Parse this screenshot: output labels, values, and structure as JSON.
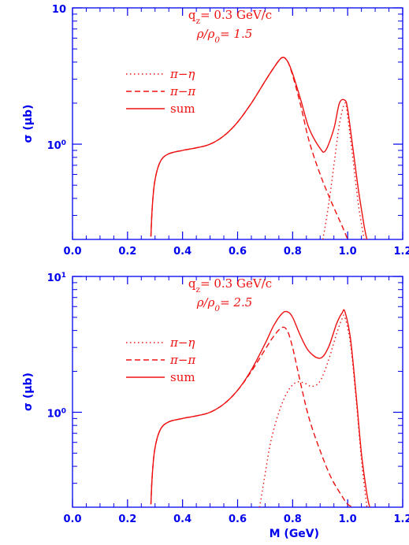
{
  "colors": {
    "axis": "#0000ee",
    "curve": "#ee1111",
    "background": "#ffffff"
  },
  "chart_data": [
    {
      "type": "line",
      "title_lines": [
        "q_z= 0.3 GeV/c",
        "ρ/ρ_0= 1.5"
      ],
      "ylabel": "σ (μb)",
      "xlabel": "",
      "xlim": [
        0.0,
        1.2
      ],
      "ylim": [
        0.2,
        10
      ],
      "yscale": "log",
      "xticks": [
        "0.0",
        "0.2",
        "0.4",
        "0.6",
        "0.8",
        "1.0",
        "1.2"
      ],
      "yticks": [
        {
          "value": 1,
          "label": "10^0"
        },
        {
          "value": 10,
          "label": "10"
        }
      ],
      "legend_position": "upper-left",
      "series": [
        {
          "name": "π−η",
          "style": "dotted",
          "x": [
            0.91,
            0.93,
            0.95,
            0.97,
            0.99,
            1.0,
            1.02,
            1.04,
            1.06
          ],
          "y": [
            0.2,
            0.35,
            0.7,
            1.4,
            2.0,
            1.6,
            0.75,
            0.35,
            0.2
          ]
        },
        {
          "name": "π−π",
          "style": "dashed",
          "x": [
            0.285,
            0.29,
            0.3,
            0.32,
            0.35,
            0.4,
            0.45,
            0.5,
            0.55,
            0.6,
            0.65,
            0.7,
            0.73,
            0.76,
            0.78,
            0.8,
            0.83,
            0.86,
            0.9,
            0.94,
            0.98,
            1.0
          ],
          "y": [
            0.21,
            0.35,
            0.55,
            0.75,
            0.85,
            0.9,
            0.94,
            1.0,
            1.15,
            1.45,
            2.0,
            2.9,
            3.6,
            4.3,
            4.1,
            3.2,
            1.9,
            1.05,
            0.6,
            0.38,
            0.25,
            0.2
          ]
        },
        {
          "name": "sum",
          "style": "solid",
          "x": [
            0.285,
            0.29,
            0.3,
            0.32,
            0.35,
            0.4,
            0.45,
            0.5,
            0.55,
            0.6,
            0.65,
            0.7,
            0.73,
            0.76,
            0.78,
            0.8,
            0.83,
            0.86,
            0.9,
            0.92,
            0.95,
            0.97,
            0.99,
            1.0,
            1.02,
            1.04,
            1.06,
            1.07
          ],
          "y": [
            0.21,
            0.35,
            0.55,
            0.75,
            0.85,
            0.9,
            0.94,
            1.0,
            1.15,
            1.45,
            2.0,
            2.9,
            3.6,
            4.3,
            4.1,
            3.3,
            2.1,
            1.3,
            0.93,
            0.9,
            1.3,
            2.0,
            2.1,
            1.8,
            0.9,
            0.45,
            0.25,
            0.2
          ]
        }
      ]
    },
    {
      "type": "line",
      "title_lines": [
        "q_z= 0.3 GeV/c",
        "ρ/ρ_0= 2.5"
      ],
      "ylabel": "σ (μb)",
      "xlabel": "M (GeV)",
      "xlim": [
        0.0,
        1.2
      ],
      "ylim": [
        0.2,
        10
      ],
      "yscale": "log",
      "xticks": [
        "0.0",
        "0.2",
        "0.4",
        "0.6",
        "0.8",
        "1.0",
        "1.2"
      ],
      "yticks": [
        {
          "value": 1,
          "label": "10^0"
        },
        {
          "value": 10,
          "label": "10^1"
        }
      ],
      "legend_position": "upper-left",
      "series": [
        {
          "name": "π−η",
          "style": "dotted",
          "x": [
            0.68,
            0.7,
            0.72,
            0.75,
            0.78,
            0.81,
            0.84,
            0.87,
            0.9,
            0.93,
            0.96,
            0.98,
            0.99,
            1.01,
            1.03,
            1.05,
            1.07
          ],
          "y": [
            0.2,
            0.35,
            0.6,
            1.0,
            1.4,
            1.65,
            1.65,
            1.55,
            1.7,
            2.4,
            3.8,
            4.9,
            5.0,
            3.2,
            1.3,
            0.45,
            0.2
          ]
        },
        {
          "name": "π−π",
          "style": "dashed",
          "x": [
            0.285,
            0.29,
            0.3,
            0.32,
            0.35,
            0.4,
            0.45,
            0.5,
            0.55,
            0.6,
            0.65,
            0.7,
            0.73,
            0.76,
            0.78,
            0.8,
            0.83,
            0.86,
            0.9,
            0.94,
            0.98,
            1.0,
            1.02
          ],
          "y": [
            0.21,
            0.35,
            0.55,
            0.75,
            0.85,
            0.9,
            0.94,
            1.0,
            1.15,
            1.45,
            2.0,
            2.9,
            3.6,
            4.2,
            4.0,
            3.0,
            1.6,
            0.9,
            0.52,
            0.33,
            0.24,
            0.21,
            0.2
          ]
        },
        {
          "name": "sum",
          "style": "solid",
          "x": [
            0.285,
            0.29,
            0.3,
            0.32,
            0.35,
            0.4,
            0.45,
            0.5,
            0.55,
            0.6,
            0.65,
            0.7,
            0.73,
            0.76,
            0.78,
            0.8,
            0.83,
            0.86,
            0.9,
            0.93,
            0.96,
            0.98,
            0.99,
            1.01,
            1.03,
            1.05,
            1.07,
            1.08
          ],
          "y": [
            0.21,
            0.35,
            0.55,
            0.75,
            0.85,
            0.9,
            0.94,
            1.0,
            1.15,
            1.45,
            2.05,
            3.2,
            4.3,
            5.3,
            5.5,
            5.0,
            3.6,
            2.8,
            2.5,
            3.0,
            4.5,
            5.4,
            5.5,
            3.5,
            1.4,
            0.5,
            0.25,
            0.2
          ]
        }
      ]
    }
  ]
}
